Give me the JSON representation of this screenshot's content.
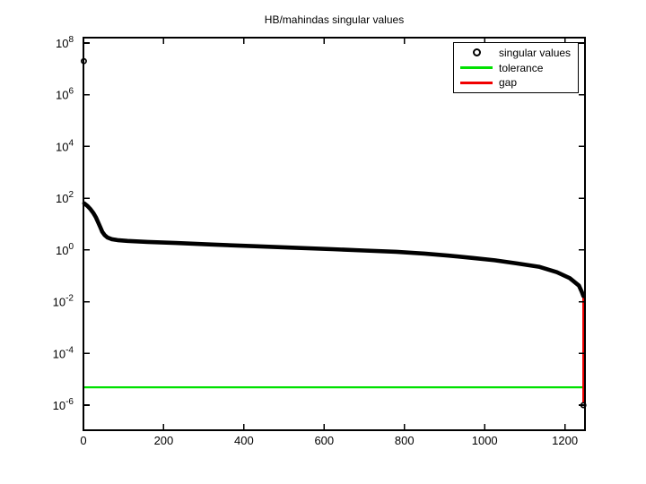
{
  "figure": {
    "title": "HB/mahindas singular values",
    "background_color": "#ffffff",
    "axes_color": "#000000"
  },
  "axes": {
    "x_ticks": [
      0,
      200,
      400,
      600,
      800,
      1000,
      1200
    ],
    "y_tick_base": "10",
    "y_tick_exponents": [
      8,
      6,
      4,
      2,
      0,
      -2,
      -4,
      -6
    ]
  },
  "legend": {
    "items": [
      {
        "label": "singular values",
        "marker": "circle",
        "color": "#000000"
      },
      {
        "label": "tolerance",
        "marker": "line",
        "color": "#00e100"
      },
      {
        "label": "gap",
        "marker": "line",
        "color": "#f10000"
      }
    ]
  },
  "chart_data": {
    "type": "scatter",
    "title": "HB/mahindas singular values",
    "xlabel": "",
    "ylabel": "",
    "y_scale": "log10",
    "x_range": [
      0,
      1250
    ],
    "y_range_log10": [
      -7,
      8.2
    ],
    "grid": false,
    "legend_position": "top-right",
    "series": [
      {
        "name": "singular values",
        "color": "#000000",
        "marker": "o",
        "curve_points_log10": [
          [
            2,
            1.8
          ],
          [
            10,
            1.7
          ],
          [
            18,
            1.57
          ],
          [
            25,
            1.42
          ],
          [
            31,
            1.26
          ],
          [
            36,
            1.09
          ],
          [
            42,
            0.88
          ],
          [
            47,
            0.7
          ],
          [
            53,
            0.57
          ],
          [
            60,
            0.48
          ],
          [
            70,
            0.42
          ],
          [
            85,
            0.38
          ],
          [
            110,
            0.35
          ],
          [
            160,
            0.31
          ],
          [
            230,
            0.27
          ],
          [
            320,
            0.21
          ],
          [
            420,
            0.15
          ],
          [
            520,
            0.09
          ],
          [
            620,
            0.03
          ],
          [
            700,
            -0.02
          ],
          [
            780,
            -0.07
          ],
          [
            850,
            -0.14
          ],
          [
            910,
            -0.22
          ],
          [
            970,
            -0.31
          ],
          [
            1025,
            -0.4
          ],
          [
            1080,
            -0.52
          ],
          [
            1135,
            -0.65
          ],
          [
            1180,
            -0.86
          ],
          [
            1212,
            -1.09
          ],
          [
            1235,
            -1.38
          ],
          [
            1242,
            -1.62
          ],
          [
            1246,
            -1.78
          ]
        ],
        "isolated_points_log10": [
          [
            1,
            7.3
          ],
          [
            1246,
            -6.0
          ]
        ]
      },
      {
        "name": "tolerance",
        "type": "hline",
        "color": "#00e100",
        "value_log10": -5.31
      },
      {
        "name": "gap",
        "type": "vline",
        "color": "#f10000",
        "x": 1246,
        "from_log10": -1.78,
        "to_log10": -6.0
      }
    ]
  }
}
